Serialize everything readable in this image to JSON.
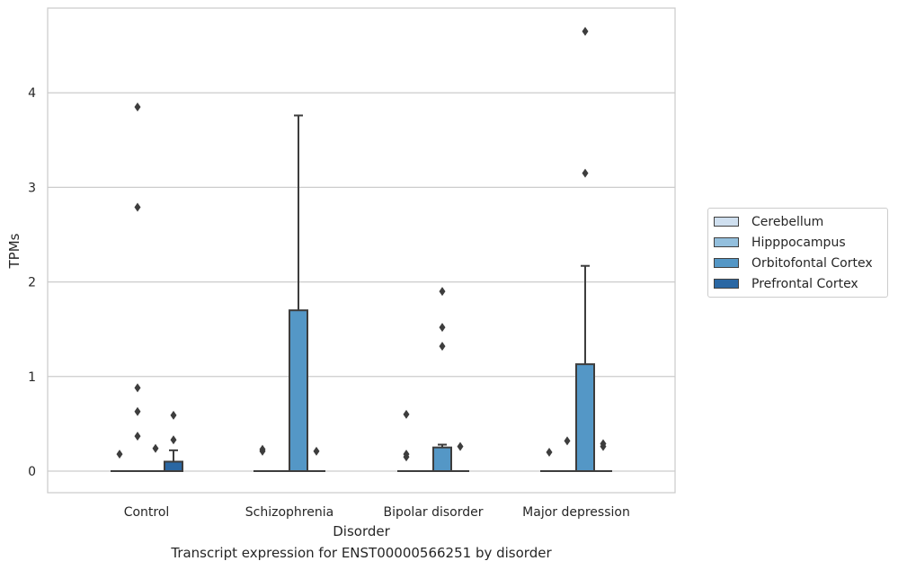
{
  "chart_data": {
    "type": "box",
    "title": "Transcript expression for ENST00000566251 by disorder",
    "xlabel": "Disorder",
    "ylabel": "TPMs",
    "ylim": [
      -0.23,
      4.89
    ],
    "yticks": [
      0,
      1,
      2,
      3,
      4
    ],
    "grid": true,
    "legend_position": "center-right",
    "categories": [
      "Control",
      "Schizophrenia",
      "Bipolar disorder",
      "Major depression"
    ],
    "series": [
      {
        "name": "Cerebellum",
        "color": "#cfdfef"
      },
      {
        "name": "Hipppocampus",
        "color": "#93bfdd"
      },
      {
        "name": "Orbitofontal Cortex",
        "color": "#5497c6"
      },
      {
        "name": "Prefrontal Cortex",
        "color": "#2a67a3"
      }
    ],
    "boxes": [
      {
        "category": "Control",
        "series": "Cerebellum",
        "q1": 0,
        "median": 0,
        "q3": 0,
        "whisker_low": 0,
        "whisker_high": 0,
        "outliers": [
          0.18
        ]
      },
      {
        "category": "Control",
        "series": "Hipppocampus",
        "q1": 0,
        "median": 0,
        "q3": 0,
        "whisker_low": 0,
        "whisker_high": 0,
        "outliers": [
          0.37,
          0.63,
          0.88,
          2.79,
          3.85
        ]
      },
      {
        "category": "Control",
        "series": "Orbitofontal Cortex",
        "q1": 0,
        "median": 0,
        "q3": 0,
        "whisker_low": 0,
        "whisker_high": 0,
        "outliers": [
          0.24
        ]
      },
      {
        "category": "Control",
        "series": "Prefrontal Cortex",
        "q1": 0,
        "median": 0,
        "q3": 0.1,
        "whisker_low": 0,
        "whisker_high": 0.22,
        "outliers": [
          0.33,
          0.59
        ]
      },
      {
        "category": "Schizophrenia",
        "series": "Cerebellum",
        "q1": 0,
        "median": 0,
        "q3": 0,
        "whisker_low": 0,
        "whisker_high": 0,
        "outliers": [
          0.21,
          0.23
        ]
      },
      {
        "category": "Schizophrenia",
        "series": "Hipppocampus",
        "q1": 0,
        "median": 0,
        "q3": 0,
        "whisker_low": 0,
        "whisker_high": 0,
        "outliers": []
      },
      {
        "category": "Schizophrenia",
        "series": "Orbitofontal Cortex",
        "q1": 0,
        "median": 0,
        "q3": 1.7,
        "whisker_low": 0,
        "whisker_high": 3.76,
        "outliers": []
      },
      {
        "category": "Schizophrenia",
        "series": "Prefrontal Cortex",
        "q1": 0,
        "median": 0,
        "q3": 0,
        "whisker_low": 0,
        "whisker_high": 0,
        "outliers": [
          0.21
        ]
      },
      {
        "category": "Bipolar disorder",
        "series": "Cerebellum",
        "q1": 0,
        "median": 0,
        "q3": 0,
        "whisker_low": 0,
        "whisker_high": 0,
        "outliers": [
          0.15,
          0.18,
          0.6
        ]
      },
      {
        "category": "Bipolar disorder",
        "series": "Hipppocampus",
        "q1": 0,
        "median": 0,
        "q3": 0,
        "whisker_low": 0,
        "whisker_high": 0,
        "outliers": []
      },
      {
        "category": "Bipolar disorder",
        "series": "Orbitofontal Cortex",
        "q1": 0,
        "median": 0,
        "q3": 0.25,
        "whisker_low": 0,
        "whisker_high": 0.28,
        "outliers": [
          1.32,
          1.52,
          1.9
        ]
      },
      {
        "category": "Bipolar disorder",
        "series": "Prefrontal Cortex",
        "q1": 0,
        "median": 0,
        "q3": 0,
        "whisker_low": 0,
        "whisker_high": 0,
        "outliers": [
          0.26
        ]
      },
      {
        "category": "Major depression",
        "series": "Cerebellum",
        "q1": 0,
        "median": 0,
        "q3": 0,
        "whisker_low": 0,
        "whisker_high": 0,
        "outliers": [
          0.2
        ]
      },
      {
        "category": "Major depression",
        "series": "Hipppocampus",
        "q1": 0,
        "median": 0,
        "q3": 0,
        "whisker_low": 0,
        "whisker_high": 0,
        "outliers": [
          0.32
        ]
      },
      {
        "category": "Major depression",
        "series": "Orbitofontal Cortex",
        "q1": 0,
        "median": 0,
        "q3": 1.13,
        "whisker_low": 0,
        "whisker_high": 2.17,
        "outliers": [
          3.15,
          4.65
        ]
      },
      {
        "category": "Major depression",
        "series": "Prefrontal Cortex",
        "q1": 0,
        "median": 0,
        "q3": 0,
        "whisker_low": 0,
        "whisker_high": 0,
        "outliers": [
          0.26,
          0.29
        ]
      }
    ]
  }
}
